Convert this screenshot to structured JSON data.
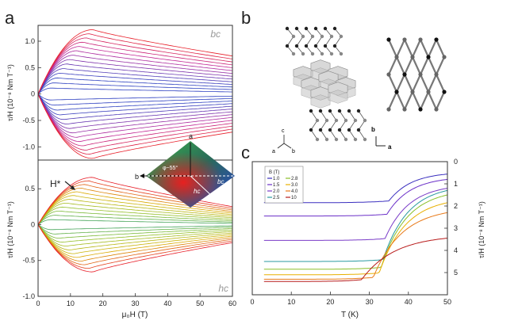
{
  "panel_labels": {
    "a": "a",
    "b": "b",
    "c": "c"
  },
  "panel_a": {
    "ylabel": "τ/H (10⁻⁸ Nm T⁻¹)",
    "xlabel": "μ₀H (T)",
    "top_corner_label": "bc",
    "bottom_corner_label": "hc",
    "hstar_label": "H*",
    "inset": {
      "axis_a": "a",
      "axis_b": "b",
      "angle_label": "φ~55°",
      "bc_label": "bc",
      "hc_label": "hc"
    }
  },
  "panel_b": {
    "axes_left": {
      "c": "c",
      "a": "a",
      "b": "b"
    },
    "axes_right": {
      "b": "b",
      "a": "a"
    }
  },
  "colors": {
    "red": "#e8202a",
    "magenta": "#c0289a",
    "blue": "#2c3fc0",
    "yellow": "#d9b000",
    "green": "#2a9a6a",
    "frame": "#333333"
  },
  "chart_data": [
    {
      "type": "line",
      "panel": "a-top",
      "xlim": [
        0,
        60
      ],
      "ylim": [
        -1.25,
        1.3
      ],
      "yticks": [
        "1.0",
        "0.5",
        "0",
        "-0.5",
        "-1.0"
      ],
      "ytick_values": [
        1.0,
        0.5,
        0,
        -0.5,
        -1.0
      ],
      "envelope_peak_field": 17,
      "envelope_peak_value": 1.22,
      "value_at_60T": 0.72,
      "curve_count": 28
    },
    {
      "type": "line",
      "panel": "a-bottom",
      "xlim": [
        0,
        60
      ],
      "ylim": [
        -1.0,
        0.9
      ],
      "xticks": [
        "0",
        "10",
        "20",
        "30",
        "40",
        "50",
        "60"
      ],
      "xtick_values": [
        0,
        10,
        20,
        30,
        40,
        50,
        60
      ],
      "yticks": [
        "0.5",
        "0",
        "-0.5",
        "-1.0"
      ],
      "ytick_values": [
        0.5,
        0,
        -0.5,
        -1.0
      ],
      "envelope_peak_field": 17,
      "envelope_peak_value": 0.66,
      "value_at_60T": 0.25,
      "curve_count": 24
    },
    {
      "type": "line",
      "panel": "c",
      "xlabel": "T (K)",
      "ylabel": "τ/H (10⁻⁸ Nm T⁻¹)",
      "xlim": [
        0,
        50
      ],
      "ylim": [
        6,
        0
      ],
      "xticks": [
        "0",
        "10",
        "20",
        "30",
        "40",
        "50"
      ],
      "xtick_values": [
        0,
        10,
        20,
        30,
        40,
        50
      ],
      "yticks": [
        "0",
        "1",
        "2",
        "3",
        "4",
        "5"
      ],
      "ytick_values": [
        0,
        1,
        2,
        3,
        4,
        5
      ],
      "legend_title": "B (T)",
      "legend_placement": "top-left",
      "series": [
        {
          "name": "1.0",
          "color": "#3a2fbf",
          "T_low": 1.85,
          "T_high": 0.56,
          "Tc": 35
        },
        {
          "name": "1.5",
          "color": "#6a2fc8",
          "T_low": 2.45,
          "T_high": 0.8,
          "Tc": 34.5
        },
        {
          "name": "2.0",
          "color": "#7a3cc8",
          "T_low": 3.55,
          "T_high": 1.2,
          "Tc": 34
        },
        {
          "name": "2.5",
          "color": "#2a9aa0",
          "T_low": 4.5,
          "T_high": 1.3,
          "Tc": 33.5
        },
        {
          "name": "2.8",
          "color": "#8abf2a",
          "T_low": 4.85,
          "T_high": 1.5,
          "Tc": 33
        },
        {
          "name": "3.0",
          "color": "#e8b000",
          "T_low": 5.1,
          "T_high": 1.85,
          "Tc": 32.5
        },
        {
          "name": "4.0",
          "color": "#e87a1a",
          "T_low": 5.3,
          "T_high": 2.3,
          "Tc": 31
        },
        {
          "name": "10",
          "color": "#b81a1a",
          "T_low": 5.4,
          "T_high": 3.45,
          "Tc": 28
        }
      ]
    }
  ]
}
